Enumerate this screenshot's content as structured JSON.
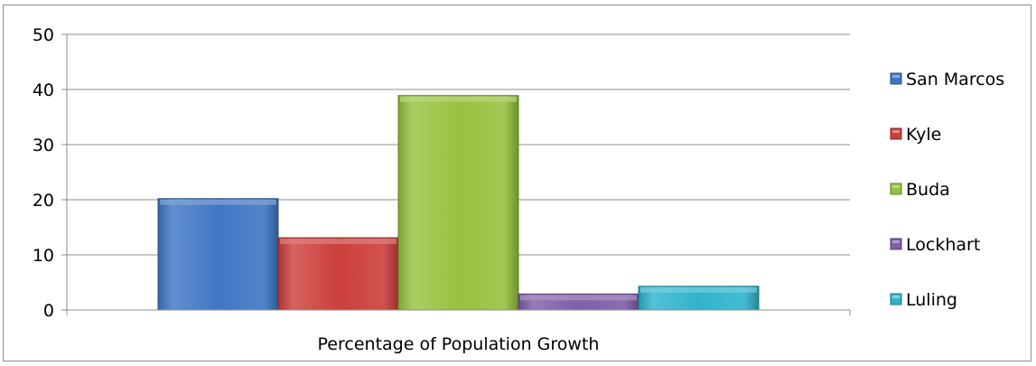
{
  "chart_data": {
    "type": "bar",
    "title": "",
    "xlabel": "Percentage of Population Growth",
    "ylabel": "",
    "categories": [
      "Percentage of Population Growth"
    ],
    "ylim": [
      0,
      50
    ],
    "yticks": [
      0,
      10,
      20,
      30,
      40,
      50
    ],
    "grid": true,
    "legend_position": "right",
    "series": [
      {
        "name": "San Marcos",
        "values": [
          20.2
        ],
        "color": "#3f76c4"
      },
      {
        "name": "Kyle",
        "values": [
          13.1
        ],
        "color": "#cc3f3c"
      },
      {
        "name": "Buda",
        "values": [
          38.9
        ],
        "color": "#97c23f"
      },
      {
        "name": "Lockhart",
        "values": [
          2.9
        ],
        "color": "#7f5ea8"
      },
      {
        "name": "Luling",
        "values": [
          4.3
        ],
        "color": "#2fb4cc"
      }
    ]
  }
}
